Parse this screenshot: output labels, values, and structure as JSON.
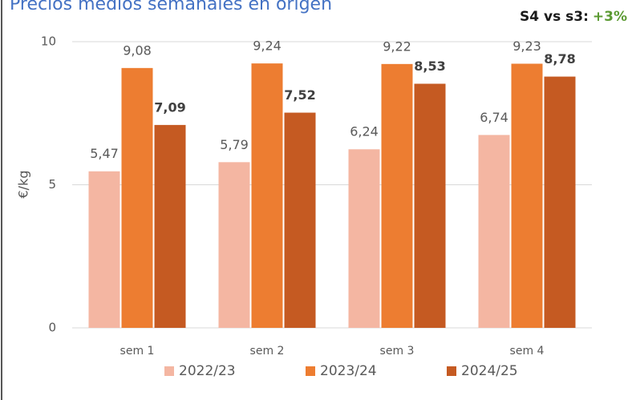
{
  "chart_data": {
    "type": "bar",
    "title": "Precios medios semanales en origen",
    "annotation": [
      {
        "text": "S4 vs s3:",
        "color": "#1a1a1a"
      },
      {
        "text": "+3%",
        "color": "#5b9a32"
      }
    ],
    "y_label": "€/kg",
    "categories": [
      "sem 1",
      "sem 2",
      "sem 3",
      "sem 4"
    ],
    "series": [
      {
        "name": "2022/23",
        "color": "#f4b6a2",
        "values": [
          5.47,
          5.79,
          6.24,
          6.74
        ],
        "value_labels": [
          "5,47",
          "5,79",
          "6,24",
          "6,74"
        ]
      },
      {
        "name": "2023/24",
        "color": "#ed7d31",
        "values": [
          9.08,
          9.24,
          9.22,
          9.23
        ],
        "value_labels": [
          "9,08",
          "9,24",
          "9,22",
          "9,23"
        ]
      },
      {
        "name": "2024/25",
        "color": "#c55a22",
        "values": [
          7.09,
          7.52,
          8.53,
          8.78
        ],
        "value_labels": [
          "7,09",
          "7,52",
          "8,53",
          "8,78"
        ],
        "bold_labels": true
      }
    ],
    "ylim": [
      0,
      10
    ],
    "yticks": [
      0,
      5,
      10
    ],
    "grid": true,
    "legend": "bottom"
  }
}
